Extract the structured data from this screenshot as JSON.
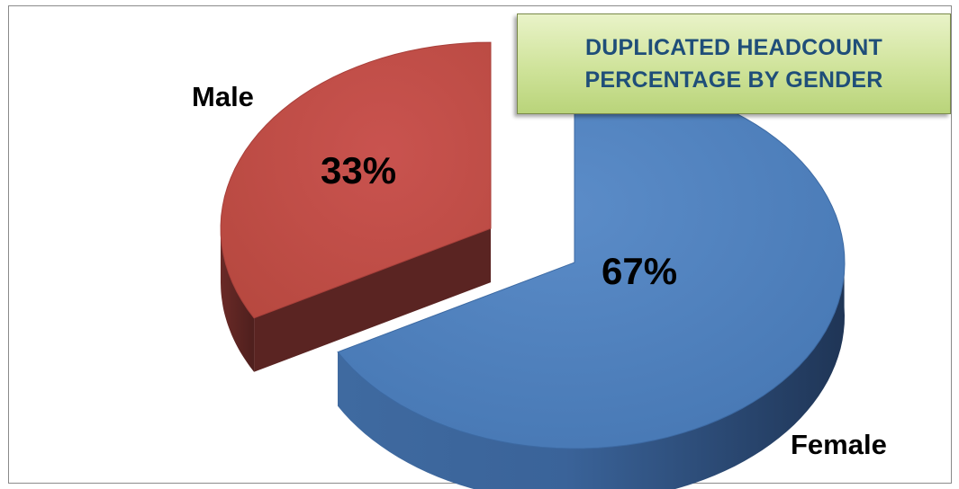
{
  "chart_data": {
    "type": "pie",
    "title": "DUPLICATED  HEADCOUNT\nPERCENTAGE BY GENDER",
    "categories": [
      "Male",
      "Female"
    ],
    "values": [
      33,
      67
    ],
    "data_labels": [
      "33%",
      "67%"
    ],
    "colors": {
      "Male": "#c0504d",
      "Male_side": "#5a2422",
      "Female": "#4f81bd",
      "Female_side": "#2c4a73"
    },
    "style": "3d-exploded",
    "legend": "none"
  }
}
